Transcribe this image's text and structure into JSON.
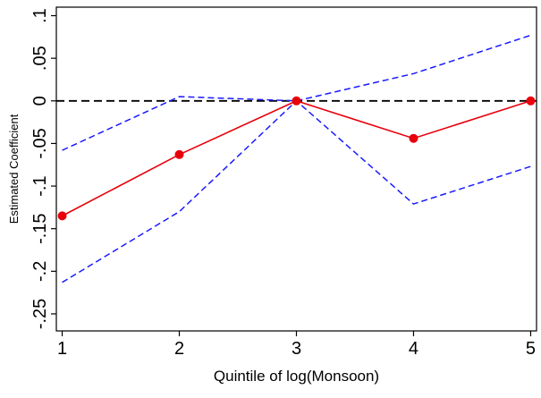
{
  "chart_data": {
    "type": "line",
    "title": "",
    "xlabel": "Quintile of log(Monsoon)",
    "ylabel": "Estimated Coefficient",
    "x": [
      1,
      2,
      3,
      4,
      5
    ],
    "x_tick_labels": [
      "1",
      "2",
      "3",
      "4",
      "5"
    ],
    "y_ticks": [
      -0.25,
      -0.2,
      -0.15,
      -0.1,
      -0.05,
      0,
      0.05,
      0.1
    ],
    "y_tick_labels": [
      "-.25",
      "-.2",
      "-.15",
      "-.1",
      "-.05",
      "0",
      ".05",
      ".1"
    ],
    "xlim": [
      0.95,
      5.05
    ],
    "ylim": [
      -0.27,
      0.11
    ],
    "grid": false,
    "legend": "none",
    "reference_line": {
      "y": 0,
      "style": "dashed",
      "color": "#000000"
    },
    "series": [
      {
        "role": "estimate",
        "values": [
          -0.135,
          -0.063,
          0.0,
          -0.044,
          0.0
        ],
        "color": "#e8000b",
        "style": "solid",
        "markers": true
      },
      {
        "role": "upper_ci",
        "values": [
          -0.058,
          0.005,
          0.0,
          0.032,
          0.077
        ],
        "color": "#1a1aff",
        "style": "dashed",
        "markers": false
      },
      {
        "role": "lower_ci",
        "values": [
          -0.213,
          -0.13,
          0.0,
          -0.121,
          -0.077
        ],
        "color": "#1a1aff",
        "style": "dashed",
        "markers": false
      }
    ]
  }
}
